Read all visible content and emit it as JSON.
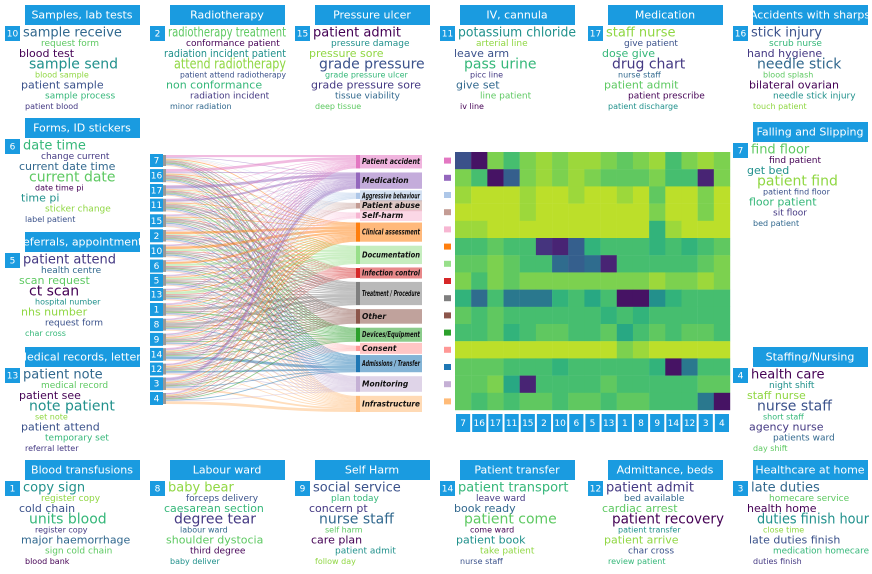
{
  "topics": [
    {
      "number": 10,
      "title": "Samples, lab tests",
      "words": [
        "sample receive",
        "request form",
        "blood test",
        "sample send",
        "blood sample",
        "patient sample",
        "sample process",
        "patient blood"
      ]
    },
    {
      "number": 2,
      "title": "Radiotherapy",
      "words": [
        "radiotherapy treatment",
        "conformance patient",
        "radiation incident patient",
        "attend radiotherapy",
        "patient attend radiotherapy",
        "non conformance",
        "radiation incident",
        "minor radiation"
      ]
    },
    {
      "number": 15,
      "title": "Pressure ulcer",
      "words": [
        "patient admit",
        "pressure damage",
        "pressure sore",
        "grade pressure",
        "grade pressure ulcer",
        "grade pressure sore",
        "tissue viability",
        "deep tissue"
      ]
    },
    {
      "number": 11,
      "title": "IV, cannula",
      "words": [
        "potassium chloride",
        "arterial line",
        "leave arm",
        "pass urine",
        "picc line",
        "give set",
        "line patient",
        "iv line"
      ]
    },
    {
      "number": 17,
      "title": "Medication",
      "words": [
        "staff nurse",
        "give patient",
        "dose give",
        "drug chart",
        "nurse staff",
        "patient admit",
        "patient prescribe",
        "patient discharge"
      ]
    },
    {
      "number": 16,
      "title": "Accidents with sharps",
      "words": [
        "stick injury",
        "scrub nurse",
        "hand hygiene",
        "needle stick",
        "blood splash",
        "bilateral ovarian",
        "needle stick injury",
        "touch patient"
      ]
    },
    {
      "number": 6,
      "title": "Forms, ID stickers",
      "words": [
        "date time",
        "change current",
        "current date time",
        "current date",
        "date time pi",
        "time pi",
        "sticker change",
        "label patient"
      ]
    },
    {
      "number": 5,
      "title": "Referrals, appointments",
      "words": [
        "patient attend",
        "health centre",
        "scan request",
        "ct scan",
        "hospital number",
        "nhs number",
        "request form",
        "char cross"
      ]
    },
    {
      "number": 13,
      "title": "Medical records, letters",
      "words": [
        "patient note",
        "medical record",
        "patient see",
        "note patient",
        "set note",
        "patient attend",
        "temporary set",
        "referral letter"
      ]
    },
    {
      "number": 7,
      "title": "Falling and Slipping",
      "words": [
        "find floor",
        "find patient",
        "get bed",
        "patient find",
        "patient find floor",
        "floor patient",
        "sit floor",
        "bed patient"
      ]
    },
    {
      "number": 4,
      "title": "Staffing/Nursing",
      "words": [
        "health care",
        "night shift",
        "staff nurse",
        "nurse staff",
        "short staff",
        "agency nurse",
        "patients ward",
        "day shift"
      ]
    },
    {
      "number": 1,
      "title": "Blood transfusions",
      "words": [
        "copy sign",
        "register copy",
        "cold chain",
        "units blood",
        "register copy",
        "major haemorrhage",
        "sign cold chain",
        "blood bank"
      ]
    },
    {
      "number": 8,
      "title": "Labour ward",
      "words": [
        "baby bear",
        "forceps delivery",
        "caesarean section",
        "degree tear",
        "labour ward",
        "shoulder dystocia",
        "third degree",
        "baby deliver"
      ]
    },
    {
      "number": 9,
      "title": "Self Harm",
      "words": [
        "social service",
        "plan today",
        "concern pt",
        "nurse staff",
        "self harm",
        "care plan",
        "patient admit",
        "follow day"
      ]
    },
    {
      "number": 14,
      "title": "Patient transfer",
      "words": [
        "patient transport",
        "leave ward",
        "book ready",
        "patient come",
        "come ward",
        "patient book",
        "take patient",
        "nurse staff"
      ]
    },
    {
      "number": 12,
      "title": "Admittance, beds",
      "words": [
        "patient admit",
        "bed available",
        "cardiac arrest",
        "patient recovery",
        "patient transfer",
        "patient arrive",
        "char cross",
        "review patient"
      ]
    },
    {
      "number": 3,
      "title": "Healthcare at home",
      "words": [
        "late duties",
        "homecare service",
        "health home",
        "duties finish hour",
        "close time",
        "late duties finish",
        "medication homecare",
        "duties finish"
      ]
    }
  ],
  "topic_order": [
    7,
    16,
    17,
    11,
    15,
    2,
    10,
    6,
    5,
    13,
    1,
    8,
    9,
    14,
    12,
    3,
    4
  ],
  "categories": [
    {
      "name": "Patient accident",
      "color": "#e377c2"
    },
    {
      "name": "Medication",
      "color": "#9467bd"
    },
    {
      "name": "Aggressive behaviour",
      "color": "#aec7e8"
    },
    {
      "name": "Patient abuse",
      "color": "#c49c94"
    },
    {
      "name": "Self-harm",
      "color": "#f7b6d2"
    },
    {
      "name": "Clinical assessment",
      "color": "#ff7f0e"
    },
    {
      "name": "Documentation",
      "color": "#98df8a"
    },
    {
      "name": "Infection control",
      "color": "#d62728"
    },
    {
      "name": "Treatment / Procedure",
      "color": "#7f7f7f"
    },
    {
      "name": "Other",
      "color": "#8c564b"
    },
    {
      "name": "Devices/Equipment",
      "color": "#2ca02c"
    },
    {
      "name": "Consent",
      "color": "#ff9896"
    },
    {
      "name": "Admissions / Transfer",
      "color": "#1f77b4"
    },
    {
      "name": "Monitoring",
      "color": "#c5b0d5"
    },
    {
      "name": "Infrastructure",
      "color": "#ffbb78"
    }
  ],
  "heatmap": {
    "values": [
      [
        0.75,
        0.95,
        0.2,
        0.3,
        0.2,
        0.15,
        0.2,
        0.15,
        0.15,
        0.2,
        0.25,
        0.2,
        0.15,
        0.3,
        0.2,
        0.15,
        0.2
      ],
      [
        0.2,
        0.3,
        0.95,
        0.7,
        0.2,
        0.15,
        0.2,
        0.15,
        0.2,
        0.25,
        0.25,
        0.25,
        0.2,
        0.3,
        0.3,
        0.9,
        0.2
      ],
      [
        0.15,
        0.1,
        0.1,
        0.1,
        0.15,
        0.1,
        0.1,
        0.15,
        0.1,
        0.1,
        0.15,
        0.1,
        0.25,
        0.1,
        0.1,
        0.2,
        0.1
      ],
      [
        0.1,
        0.1,
        0.1,
        0.1,
        0.15,
        0.1,
        0.1,
        0.1,
        0.1,
        0.1,
        0.1,
        0.1,
        0.2,
        0.1,
        0.1,
        0.2,
        0.1
      ],
      [
        0.15,
        0.15,
        0.1,
        0.1,
        0.1,
        0.1,
        0.1,
        0.1,
        0.1,
        0.1,
        0.1,
        0.1,
        0.35,
        0.15,
        0.1,
        0.1,
        0.1
      ],
      [
        0.3,
        0.3,
        0.25,
        0.3,
        0.3,
        0.85,
        0.9,
        0.7,
        0.35,
        0.3,
        0.3,
        0.3,
        0.35,
        0.3,
        0.35,
        0.3,
        0.25
      ],
      [
        0.25,
        0.25,
        0.2,
        0.25,
        0.3,
        0.3,
        0.65,
        0.7,
        0.65,
        0.9,
        0.3,
        0.3,
        0.3,
        0.3,
        0.3,
        0.25,
        0.2
      ],
      [
        0.2,
        0.3,
        0.2,
        0.25,
        0.2,
        0.2,
        0.2,
        0.2,
        0.2,
        0.2,
        0.2,
        0.2,
        0.15,
        0.2,
        0.2,
        0.15,
        0.2
      ],
      [
        0.35,
        0.65,
        0.3,
        0.6,
        0.6,
        0.6,
        0.35,
        0.3,
        0.4,
        0.3,
        0.95,
        0.95,
        0.5,
        0.35,
        0.3,
        0.3,
        0.3
      ],
      [
        0.25,
        0.3,
        0.25,
        0.3,
        0.3,
        0.3,
        0.3,
        0.3,
        0.3,
        0.35,
        0.3,
        0.35,
        0.3,
        0.3,
        0.3,
        0.3,
        0.3
      ],
      [
        0.3,
        0.3,
        0.25,
        0.35,
        0.3,
        0.25,
        0.25,
        0.3,
        0.3,
        0.25,
        0.4,
        0.3,
        0.25,
        0.3,
        0.25,
        0.25,
        0.3
      ],
      [
        0.1,
        0.1,
        0.1,
        0.1,
        0.1,
        0.1,
        0.1,
        0.1,
        0.1,
        0.1,
        0.2,
        0.15,
        0.1,
        0.1,
        0.1,
        0.1,
        0.1
      ],
      [
        0.25,
        0.25,
        0.25,
        0.3,
        0.3,
        0.3,
        0.35,
        0.3,
        0.3,
        0.3,
        0.3,
        0.3,
        0.35,
        0.95,
        0.6,
        0.3,
        0.3
      ],
      [
        0.25,
        0.25,
        0.2,
        0.4,
        0.9,
        0.3,
        0.3,
        0.3,
        0.3,
        0.25,
        0.3,
        0.3,
        0.3,
        0.3,
        0.3,
        0.25,
        0.25
      ],
      [
        0.25,
        0.3,
        0.25,
        0.3,
        0.25,
        0.25,
        0.3,
        0.25,
        0.25,
        0.3,
        0.25,
        0.25,
        0.3,
        0.3,
        0.3,
        0.6,
        0.95
      ]
    ]
  }
}
